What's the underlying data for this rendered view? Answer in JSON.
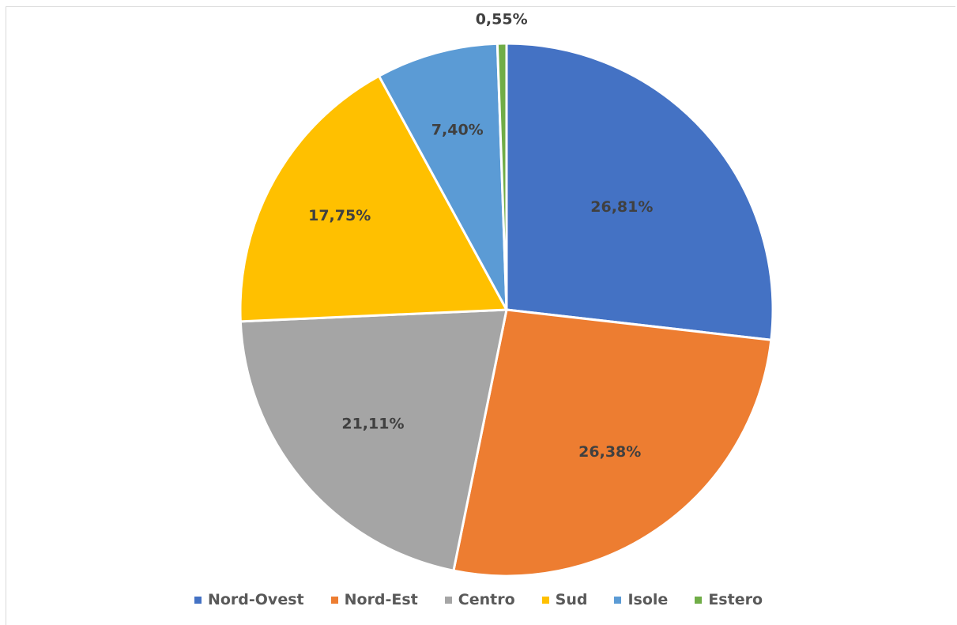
{
  "chart_data": {
    "type": "pie",
    "title": "",
    "slices": [
      {
        "name": "Nord-Ovest",
        "value": 26.81,
        "label": "26,81%",
        "color": "#4472C4"
      },
      {
        "name": "Nord-Est",
        "value": 26.38,
        "label": "26,38%",
        "color": "#ED7D31"
      },
      {
        "name": "Centro",
        "value": 21.11,
        "label": "21,11%",
        "color": "#A5A5A5"
      },
      {
        "name": "Sud",
        "value": 17.75,
        "label": "17,75%",
        "color": "#FFC000"
      },
      {
        "name": "Isole",
        "value": 7.4,
        "label": "7,40%",
        "color": "#5B9BD5"
      },
      {
        "name": "Estero",
        "value": 0.55,
        "label": "0,55%",
        "color": "#70AD47"
      }
    ],
    "start_angle": "12 o'clock",
    "direction": "clockwise",
    "legend_position": "bottom"
  }
}
